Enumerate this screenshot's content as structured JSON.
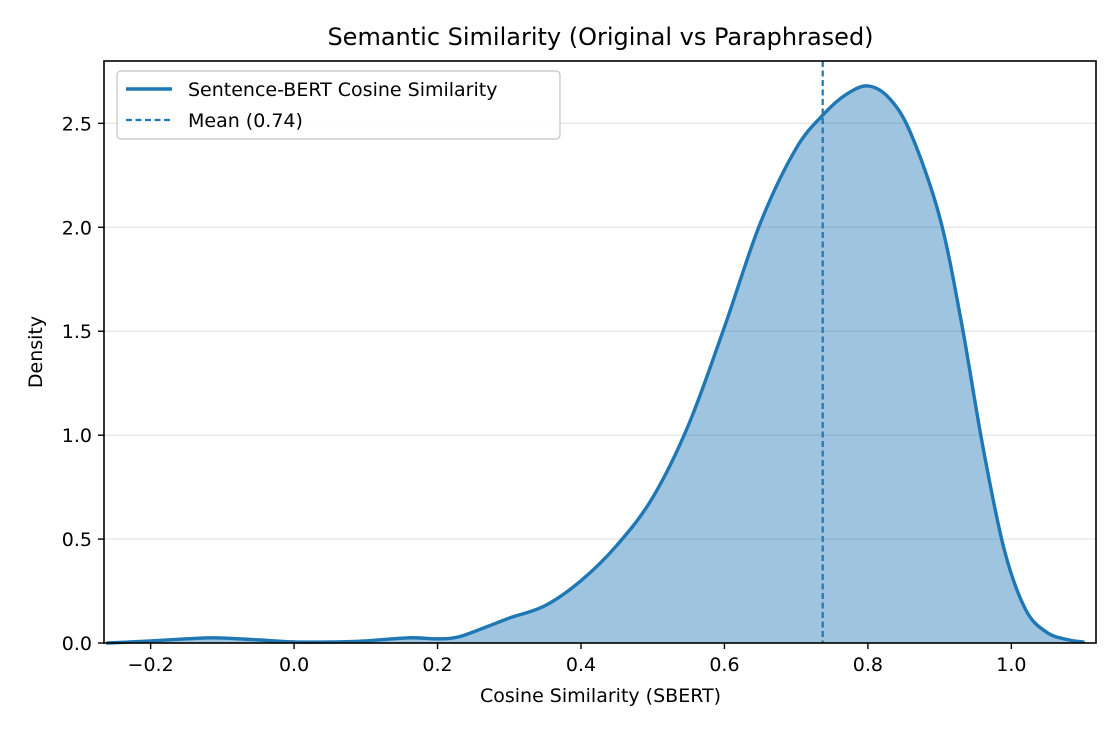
{
  "chart_data": {
    "type": "area",
    "title": "Semantic Similarity (Original vs Paraphrased)",
    "xlabel": "Cosine Similarity (SBERT)",
    "ylabel": "Density",
    "xlim": [
      -0.265,
      1.118
    ],
    "ylim": [
      0,
      2.8
    ],
    "xticks": [
      -0.2,
      0.0,
      0.2,
      0.4,
      0.6,
      0.8,
      1.0
    ],
    "xtick_labels": [
      "−0.2",
      "0.0",
      "0.2",
      "0.4",
      "0.6",
      "0.8",
      "1.0"
    ],
    "yticks": [
      0.0,
      0.5,
      1.0,
      1.5,
      2.0,
      2.5
    ],
    "ytick_labels": [
      "0.0",
      "0.5",
      "1.0",
      "1.5",
      "2.0",
      "2.5"
    ],
    "grid": "horizontal",
    "legend_position": "top-left",
    "color": "#1f77b4",
    "series": [
      {
        "name": "Sentence-BERT Cosine Similarity",
        "x": [
          -0.26,
          -0.2,
          -0.15,
          -0.11,
          -0.05,
          0.0,
          0.05,
          0.1,
          0.16,
          0.2,
          0.23,
          0.27,
          0.3,
          0.35,
          0.4,
          0.45,
          0.5,
          0.55,
          0.6,
          0.65,
          0.7,
          0.74,
          0.77,
          0.8,
          0.83,
          0.86,
          0.9,
          0.93,
          0.96,
          0.99,
          1.02,
          1.05,
          1.08,
          1.1
        ],
        "y": [
          0.0,
          0.01,
          0.02,
          0.025,
          0.015,
          0.005,
          0.005,
          0.01,
          0.025,
          0.02,
          0.03,
          0.08,
          0.12,
          0.18,
          0.3,
          0.47,
          0.7,
          1.05,
          1.52,
          2.02,
          2.38,
          2.55,
          2.64,
          2.68,
          2.62,
          2.45,
          2.05,
          1.55,
          0.95,
          0.45,
          0.16,
          0.05,
          0.015,
          0.005
        ]
      }
    ],
    "reference_lines": [
      {
        "name": "Mean (0.74)",
        "x": 0.737,
        "style": "dashed"
      }
    ]
  }
}
